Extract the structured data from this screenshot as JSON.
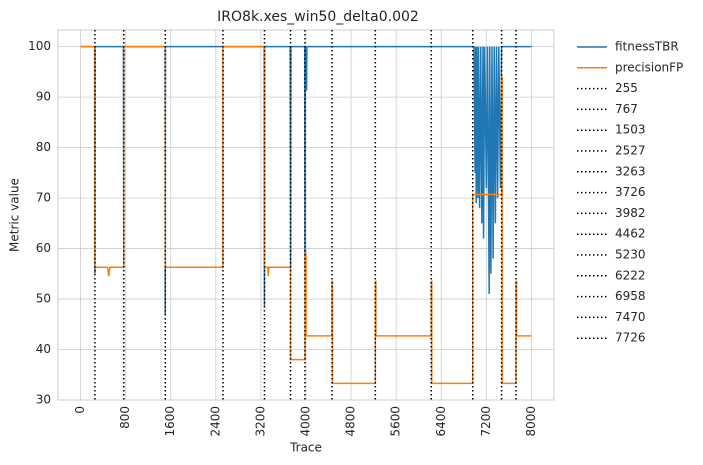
{
  "chart_data": {
    "type": "line",
    "title": "IRO8k.xes_win50_delta0.002",
    "x_label": "Trace",
    "y_label": "Metric value",
    "xlim": [
      -400,
      8400
    ],
    "ylim": [
      30,
      103.3
    ],
    "xticks": [
      0,
      800,
      1600,
      2400,
      3200,
      4000,
      4800,
      5600,
      6400,
      7200,
      8000
    ],
    "yticks": [
      30,
      40,
      50,
      60,
      70,
      80,
      90,
      100
    ],
    "grid": true,
    "legend": "outside right",
    "series": [
      {
        "name": "fitnessTBR",
        "color": "#1f77b4",
        "x": [
          0,
          250,
          255,
          260,
          760,
          767,
          770,
          1500,
          1503,
          1506,
          3258,
          3263,
          3268,
          3720,
          3726,
          3732,
          3978,
          3982,
          3986,
          4000,
          4010,
          4015,
          6980,
          7000,
          7010,
          7020,
          7030,
          7050,
          7060,
          7080,
          7100,
          7120,
          7140,
          7150,
          7170,
          7200,
          7220,
          7250,
          7260,
          7280,
          7300,
          7320,
          7340,
          7360,
          7380,
          7400,
          7420,
          7450,
          7470,
          8000
        ],
        "values": [
          100,
          100,
          55,
          100,
          100,
          57,
          100,
          100,
          47,
          100,
          100,
          48.5,
          100,
          100,
          56,
          100,
          100,
          56,
          100,
          91.5,
          91.5,
          100,
          100,
          75,
          100,
          69,
          100,
          70,
          100,
          68,
          100,
          65,
          100,
          62,
          100,
          72,
          100,
          51,
          100,
          55,
          100,
          58,
          100,
          65,
          100,
          70,
          100,
          72,
          100,
          100
        ]
      },
      {
        "name": "precisionFP",
        "color": "#ff7f0e",
        "x": [
          0,
          255,
          255,
          480,
          500,
          520,
          767,
          767,
          1503,
          1503,
          2527,
          2527,
          3263,
          3263,
          3320,
          3330,
          3340,
          3726,
          3726,
          3982,
          3982,
          4000,
          4000,
          4462,
          4462,
          4470,
          4470,
          5230,
          5230,
          5240,
          5240,
          6222,
          6222,
          6232,
          6232,
          6958,
          6958,
          7470,
          7470,
          7480,
          7480,
          7726,
          7726,
          7736,
          7736,
          8000
        ],
        "values": [
          100,
          100,
          56.3,
          56.3,
          54.5,
          56.3,
          56.3,
          100,
          100,
          56.3,
          56.3,
          100,
          100,
          56.3,
          56.3,
          54.5,
          56.3,
          56.3,
          38,
          38,
          59,
          59,
          42.7,
          42.7,
          53.5,
          53.5,
          33.3,
          33.3,
          53.5,
          53.5,
          42.7,
          42.7,
          53.5,
          53.5,
          33.3,
          33.3,
          70.7,
          70.7,
          94,
          94,
          33.3,
          33.3,
          53.5,
          53.5,
          42.7,
          42.7
        ]
      }
    ],
    "vlines": [
      {
        "name": "255",
        "value": 255
      },
      {
        "name": "767",
        "value": 767
      },
      {
        "name": "1503",
        "value": 1503
      },
      {
        "name": "2527",
        "value": 2527
      },
      {
        "name": "3263",
        "value": 3263
      },
      {
        "name": "3726",
        "value": 3726
      },
      {
        "name": "3982",
        "value": 3982
      },
      {
        "name": "4462",
        "value": 4462
      },
      {
        "name": "5230",
        "value": 5230
      },
      {
        "name": "6222",
        "value": 6222
      },
      {
        "name": "6958",
        "value": 6958
      },
      {
        "name": "7470",
        "value": 7470
      },
      {
        "name": "7726",
        "value": 7726
      }
    ],
    "vline_color": "#000000"
  }
}
